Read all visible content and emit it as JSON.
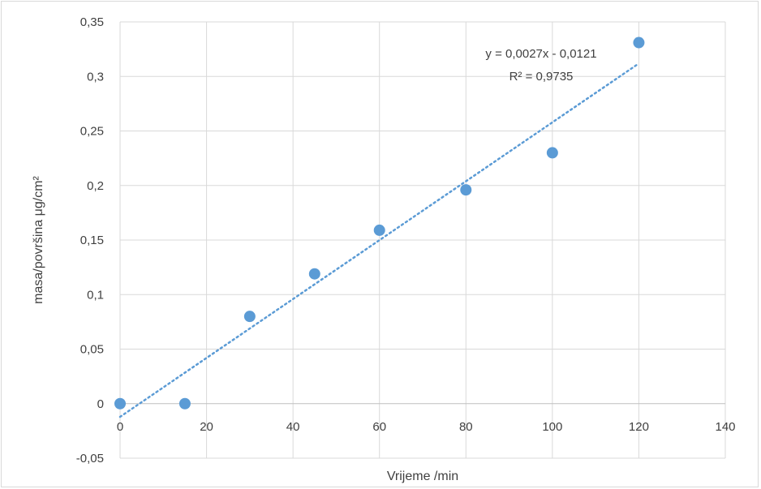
{
  "chart_data": {
    "type": "scatter",
    "title": "",
    "xlabel": "Vrijeme /min",
    "ylabel": "masa/površina μg/cm²",
    "xlim": [
      0,
      140
    ],
    "ylim": [
      -0.05,
      0.35
    ],
    "x_ticks": [
      0,
      20,
      40,
      60,
      80,
      100,
      120,
      140
    ],
    "x_tick_labels": [
      "0",
      "20",
      "40",
      "60",
      "80",
      "100",
      "120",
      "140"
    ],
    "y_ticks": [
      -0.05,
      0,
      0.05,
      0.1,
      0.15,
      0.2,
      0.25,
      0.3,
      0.35
    ],
    "y_tick_labels": [
      "-0,05",
      "0",
      "0,05",
      "0,1",
      "0,15",
      "0,2",
      "0,25",
      "0,3",
      "0,35"
    ],
    "grid": true,
    "legend": "none",
    "series": [
      {
        "x": [
          0,
          15,
          30,
          45,
          60,
          80,
          100,
          120
        ],
        "y": [
          0,
          0,
          0.08,
          0.119,
          0.159,
          0.196,
          0.23,
          0.331
        ],
        "color": "#5b9bd5"
      }
    ],
    "trendline": {
      "type": "linear",
      "slope": 0.0027,
      "intercept": -0.0121,
      "x_range": [
        0,
        120
      ],
      "color": "#5b9bd5",
      "style": "dotted",
      "equation_label": "y = 0,0027x - 0,0121",
      "r2_label": "R² = 0,9735"
    }
  }
}
